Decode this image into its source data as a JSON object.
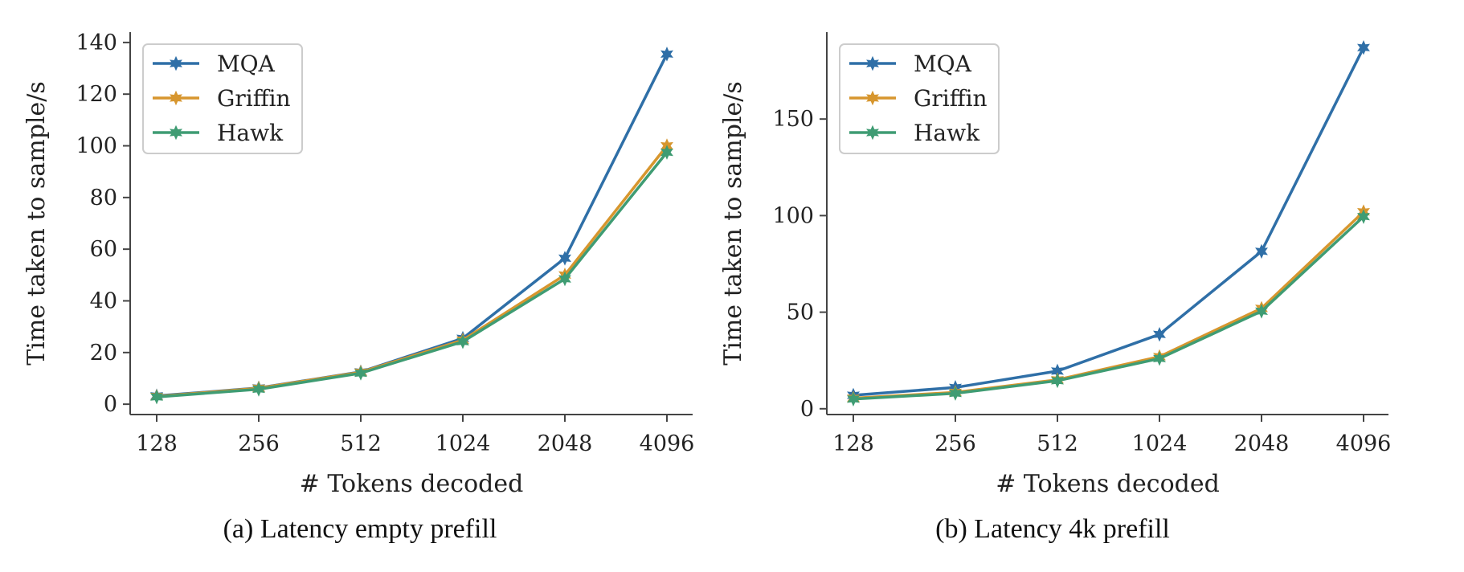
{
  "figure": {
    "captions": [
      "(a)  Latency empty prefill",
      "(b)  Latency 4k prefill"
    ]
  },
  "colors": {
    "MQA": "#2f6fa7",
    "Griffin": "#d7962e",
    "Hawk": "#3f9c73",
    "axis": "#444444"
  },
  "chart_data": [
    {
      "type": "line",
      "title": "",
      "xlabel": "# Tokens decoded",
      "ylabel": "Time taken to sample/s",
      "categories": [
        "128",
        "256",
        "512",
        "1024",
        "2048",
        "4096"
      ],
      "ylim": [
        -4,
        144
      ],
      "yticks": [
        0,
        20,
        40,
        60,
        80,
        100,
        120,
        140
      ],
      "grid": false,
      "legend": "top-left",
      "series": [
        {
          "name": "MQA",
          "values": [
            3.2,
            6.3,
            12.5,
            25.5,
            56.5,
            135.5
          ]
        },
        {
          "name": "Griffin",
          "values": [
            3.0,
            6.2,
            12.4,
            24.8,
            50.0,
            100.0
          ]
        },
        {
          "name": "Hawk",
          "values": [
            2.8,
            5.8,
            12.0,
            24.2,
            48.5,
            97.5
          ]
        }
      ]
    },
    {
      "type": "line",
      "title": "",
      "xlabel": "# Tokens decoded",
      "ylabel": "Time taken to sample/s",
      "categories": [
        "128",
        "256",
        "512",
        "1024",
        "2048",
        "4096"
      ],
      "ylim": [
        -3,
        195
      ],
      "yticks": [
        0,
        50,
        100,
        150
      ],
      "grid": false,
      "legend": "top-left",
      "series": [
        {
          "name": "MQA",
          "values": [
            7.0,
            11.0,
            19.5,
            38.5,
            81.5,
            187.0
          ]
        },
        {
          "name": "Griffin",
          "values": [
            5.5,
            8.5,
            15.0,
            27.0,
            52.0,
            102.0
          ]
        },
        {
          "name": "Hawk",
          "values": [
            5.0,
            8.0,
            14.5,
            26.0,
            50.5,
            99.5
          ]
        }
      ]
    }
  ]
}
